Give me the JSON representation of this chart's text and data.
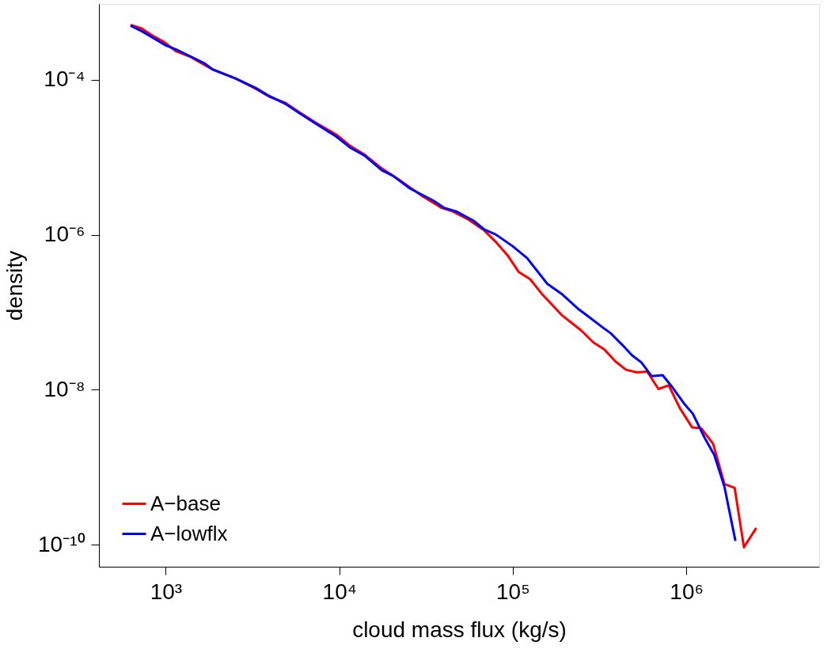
{
  "chart_data": {
    "type": "line",
    "xlabel": "cloud mass flux (kg/s)",
    "ylabel": "density",
    "log": "xy",
    "grid": false,
    "legend": "bottom left",
    "marker": "none",
    "line_style": "solid",
    "xlim": [
      412,
      5830000
    ],
    "ylim": [
      5.2e-11,
      0.00095
    ],
    "xticks": [
      {
        "value": 1000,
        "label": "10³"
      },
      {
        "value": 10000,
        "label": "10⁴"
      },
      {
        "value": 100000,
        "label": "10⁵"
      },
      {
        "value": 1000000,
        "label": "10⁶"
      }
    ],
    "yticks": [
      {
        "value": 1e-10,
        "label": "10⁻¹⁰"
      },
      {
        "value": 1e-08,
        "label": "10⁻⁸"
      },
      {
        "value": 1e-06,
        "label": "10⁻⁶"
      },
      {
        "value": 0.0001,
        "label": "10⁻⁴"
      }
    ],
    "series": [
      {
        "name": "A−base",
        "color": "#ff0000",
        "x": [
          627,
          727,
          843,
          966,
          1150,
          1390,
          1610,
          1870,
          2540,
          3300,
          4000,
          4860,
          5830,
          7320,
          9610,
          11500,
          14000,
          17600,
          22000,
          30000,
          38900,
          45100,
          54700,
          68700,
          79600,
          93400,
          108000,
          126000,
          147000,
          191000,
          248000,
          291000,
          338000,
          391000,
          449000,
          520000,
          596000,
          691000,
          792000,
          918000,
          1080000,
          1220000,
          1430000,
          1660000,
          1900000,
          2150000,
          2530000
        ],
        "values": [
          0.000511,
          0.000458,
          0.000369,
          0.000313,
          0.000232,
          0.000197,
          0.000163,
          0.000135,
          0.000103,
          7.62e-05,
          5.97e-05,
          5.07e-05,
          3.86e-05,
          2.79e-05,
          1.96e-05,
          1.41e-05,
          1.08e-05,
          7.16e-06,
          5.16e-06,
          3.17e-06,
          2.22e-06,
          2e-06,
          1.6e-06,
          1.13e-06,
          8.13e-07,
          5.41e-07,
          3.32e-07,
          2.67e-07,
          1.73e-07,
          9.24e-08,
          5.82e-08,
          4.09e-08,
          3.29e-08,
          2.31e-08,
          1.81e-08,
          1.67e-08,
          1.71e-08,
          1.02e-08,
          1.14e-08,
          5.78e-09,
          3.27e-09,
          3.18e-09,
          2e-09,
          6.05e-10,
          5.42e-10,
          9.27e-11,
          1.64e-10
        ]
      },
      {
        "name": "A−lowflx",
        "color": "#0000ff",
        "x": [
          627,
          727,
          843,
          989,
          1150,
          1440,
          1670,
          1870,
          2540,
          3300,
          3870,
          4860,
          5830,
          7320,
          9610,
          11500,
          14000,
          17600,
          20400,
          25600,
          34700,
          40300,
          47200,
          59300,
          68700,
          79600,
          100000,
          121000,
          158000,
          191000,
          240000,
          278000,
          326000,
          366000,
          424000,
          486000,
          551000,
          631000,
          731000,
          838000,
          972000,
          1090000,
          1280000,
          1450000,
          1660000,
          1920000
        ],
        "values": [
          0.000498,
          0.000423,
          0.000349,
          0.000281,
          0.000245,
          0.000192,
          0.000163,
          0.000135,
          0.000103,
          7.83e-05,
          6.3e-05,
          4.93e-05,
          3.76e-05,
          2.71e-05,
          1.85e-05,
          1.34e-05,
          1.05e-05,
          6.78e-06,
          5.75e-06,
          3.94e-06,
          2.77e-06,
          2.22e-06,
          2e-06,
          1.52e-06,
          1.16e-06,
          1.01e-06,
          7.1e-07,
          4.99e-07,
          2.33e-07,
          1.73e-07,
          1.09e-07,
          8.51e-08,
          6.49e-08,
          5.37e-08,
          3.87e-08,
          2.79e-08,
          2.25e-08,
          1.5e-08,
          1.54e-08,
          1.05e-08,
          6.62e-09,
          4.91e-09,
          2.36e-09,
          1.44e-09,
          5.57e-10,
          1.12e-10
        ]
      }
    ]
  }
}
